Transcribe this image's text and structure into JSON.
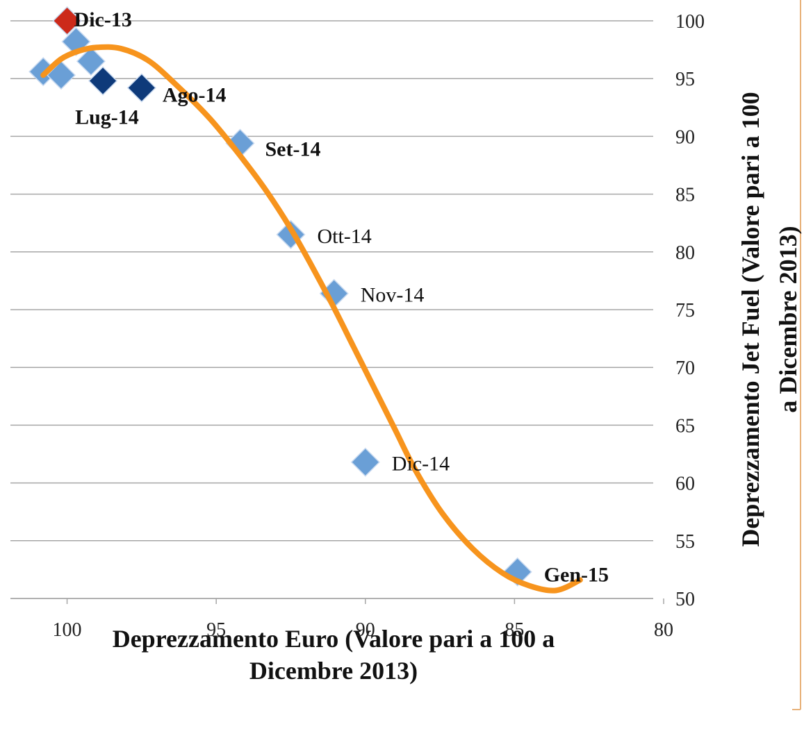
{
  "chart_data": {
    "type": "scatter",
    "xlabel": [
      "Deprezzamento Euro (Valore pari a 100 a",
      "Dicembre 2013)"
    ],
    "ylabel": [
      "Deprezzamento Jet Fuel (Valore pari a 100",
      "a Dicembre 2013)"
    ],
    "xlim": [
      101.9,
      80.35
    ],
    "xticks": [
      100,
      95,
      90,
      85,
      80
    ],
    "ylim": [
      50,
      100
    ],
    "yticks": [
      50,
      55,
      60,
      65,
      70,
      75,
      80,
      85,
      90,
      95,
      100
    ],
    "x_reversed": true,
    "grid": true,
    "series": [
      {
        "x": [
          100.8,
          100.2,
          99.7,
          99.2,
          100,
          98.8,
          97.5,
          94.2,
          92.5,
          91.05,
          90.0,
          84.9
        ],
        "values": [
          95.6,
          95.3,
          98.2,
          96.5,
          100,
          94.8,
          94.2,
          89.4,
          81.5,
          76.4,
          61.8,
          52.3
        ],
        "labels": [
          null,
          null,
          null,
          null,
          "Dic-13",
          "Lug-14",
          "Ago-14",
          "Set-14",
          "Ott-14",
          "Nov-14",
          "Dic-14",
          "Gen-15"
        ],
        "colors": [
          "#6a9fd6",
          "#6a9fd6",
          "#6a9fd6",
          "#6a9fd6",
          "#cc2a1a",
          "#0e3a7a",
          "#0e3a7a",
          "#6a9fd6",
          "#6a9fd6",
          "#6a9fd6",
          "#6a9fd6",
          "#6a9fd6"
        ]
      }
    ],
    "trendline": {
      "color": "#f7941d",
      "x": [
        100.8,
        100.2,
        99.6,
        99.0,
        98.2,
        97.3,
        96.4,
        95.2,
        94.1,
        93.3,
        92.5,
        91.8,
        91.1,
        90.4,
        89.7,
        89.0,
        88.3,
        87.4,
        86.4,
        85.4,
        84.5,
        83.6,
        82.8
      ],
      "values": [
        95.3,
        96.7,
        97.4,
        97.7,
        97.6,
        96.6,
        94.6,
        91.5,
        88,
        85.2,
        82,
        78.8,
        75.4,
        71.8,
        68.2,
        64.6,
        61,
        57.3,
        54.3,
        52.2,
        51.1,
        50.7,
        51.6
      ]
    }
  }
}
